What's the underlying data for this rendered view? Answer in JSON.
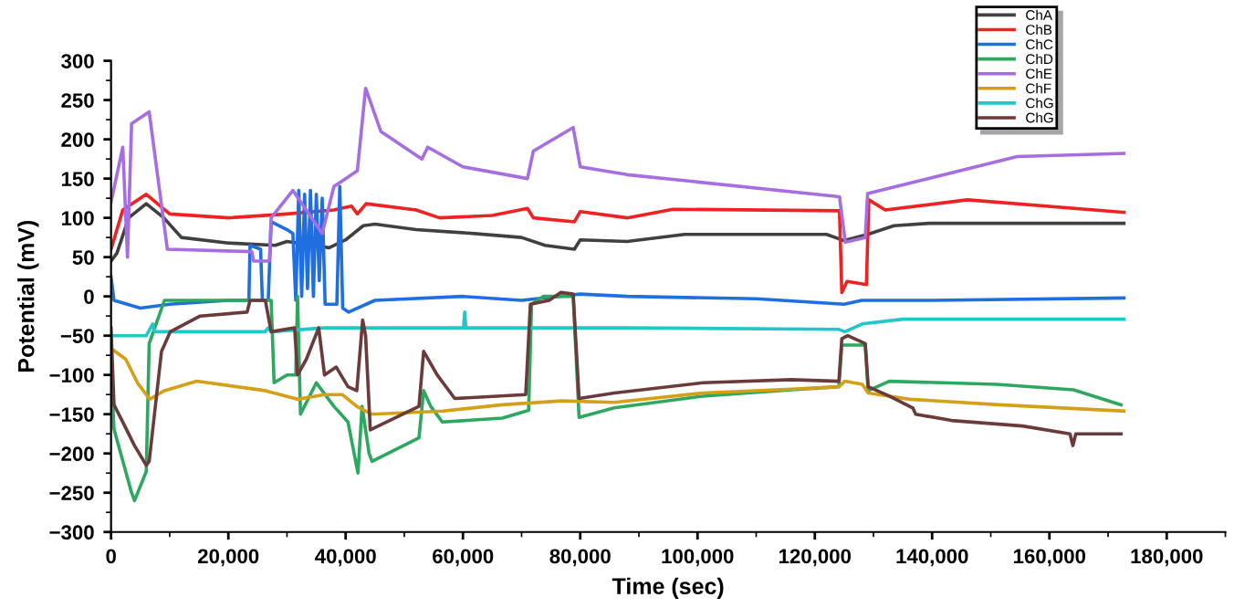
{
  "chart_data": {
    "type": "line",
    "xlabel": "Time (sec)",
    "ylabel": "Potential (mV)",
    "xlim": [
      0,
      190000
    ],
    "ylim": [
      -300,
      300
    ],
    "xticks": [
      {
        "value": 0,
        "label": "0"
      },
      {
        "value": 20000,
        "label": "20,000"
      },
      {
        "value": 40000,
        "label": "40,000"
      },
      {
        "value": 60000,
        "label": "60,000"
      },
      {
        "value": 80000,
        "label": "80,000"
      },
      {
        "value": 100000,
        "label": "100,000"
      },
      {
        "value": 120000,
        "label": "120,000"
      },
      {
        "value": 140000,
        "label": "140,000"
      },
      {
        "value": 160000,
        "label": "160,000"
      },
      {
        "value": 180000,
        "label": "180,000"
      }
    ],
    "yticks": [
      -300,
      -250,
      -200,
      -150,
      -100,
      -50,
      0,
      50,
      100,
      150,
      200,
      250,
      300
    ],
    "grid": false,
    "legend": "top right",
    "marker": "none",
    "line_style": "solid",
    "series": [
      {
        "name": "ChA",
        "color": "#404040",
        "x": [
          0,
          1000,
          3000,
          6000,
          9000,
          12000,
          20000,
          28000,
          30000,
          37200,
          40000,
          43000,
          45000,
          52000,
          62000,
          70000,
          74000,
          79000,
          80000,
          88000,
          97800,
          122000,
          125000,
          129000,
          133500,
          139500,
          172700
        ],
        "values": [
          45,
          55,
          100,
          118,
          100,
          75,
          68,
          65,
          70,
          62,
          72,
          90,
          92,
          85,
          80,
          75,
          65,
          60,
          72,
          70,
          79,
          79,
          71,
          79,
          90,
          93,
          93
        ]
      },
      {
        "name": "ChB",
        "color": "#ee2222",
        "x": [
          0,
          2000,
          6000,
          10000,
          20000,
          30000,
          38000,
          41000,
          42000,
          43500,
          52000,
          56000,
          65000,
          71000,
          72000,
          79000,
          80000,
          88000,
          95800,
          124200,
          124600,
          125500,
          128800,
          129200,
          132000,
          146000,
          172700
        ],
        "values": [
          60,
          110,
          130,
          105,
          100,
          105,
          110,
          115,
          105,
          118,
          110,
          100,
          103,
          112,
          100,
          95,
          108,
          100,
          111,
          109,
          5,
          19,
          15,
          123,
          110,
          123,
          107
        ]
      },
      {
        "name": "ChC",
        "color": "#1f6fe0",
        "x": [
          0,
          500,
          5000,
          10000,
          20000,
          23500,
          23700,
          25500,
          25800,
          26800,
          27300,
          30000,
          31000,
          31500,
          32000,
          32500,
          33000,
          33500,
          34000,
          34500,
          35000,
          35500,
          36000,
          36500,
          38500,
          39000,
          39500,
          40500,
          45000,
          60000,
          70000,
          80000,
          88000,
          110000,
          125000,
          128000,
          140000,
          172700
        ],
        "values": [
          25,
          -5,
          -15,
          -10,
          -5,
          -5,
          65,
          60,
          -5,
          -5,
          95,
          85,
          80,
          -5,
          135,
          0,
          130,
          10,
          135,
          0,
          130,
          20,
          125,
          -10,
          -10,
          140,
          -15,
          -20,
          -5,
          0,
          -5,
          3,
          0,
          -3,
          -10,
          -5,
          -5,
          -2
        ]
      },
      {
        "name": "ChD",
        "color": "#2ea860",
        "x": [
          0,
          500,
          3500,
          4000,
          6000,
          6500,
          9100,
          27300,
          27800,
          30000,
          31500,
          31800,
          32300,
          35000,
          38000,
          40400,
          42100,
          42800,
          44000,
          44500,
          52500,
          53300,
          54500,
          56500,
          66700,
          71200,
          71700,
          73700,
          78800,
          79800,
          85800,
          100900,
          116000,
          124100,
          124600,
          128600,
          129100,
          132700,
          151000,
          164100,
          172200
        ],
        "values": [
          -90,
          -169,
          -250,
          -260,
          -223,
          -60,
          -5,
          -5,
          -110,
          -100,
          -100,
          0,
          -150,
          -110,
          -140,
          -160,
          -225,
          -140,
          -200,
          -210,
          -180,
          -120,
          -140,
          -160,
          -155,
          -145,
          -10,
          0,
          0,
          -154,
          -142,
          -127,
          -119,
          -115,
          -62,
          -62,
          -120,
          -108,
          -112,
          -119,
          -138
        ]
      },
      {
        "name": "ChE",
        "color": "#a66ee0",
        "x": [
          0,
          2000,
          2800,
          3500,
          6500,
          9600,
          24000,
          24300,
          27000,
          27300,
          31000,
          36000,
          38000,
          40000,
          42000,
          43400,
          46000,
          53000,
          54000,
          60000,
          71000,
          72000,
          78800,
          80000,
          88000,
          124200,
          125200,
          128600,
          129000,
          154500,
          172700
        ],
        "values": [
          120,
          190,
          50,
          220,
          235,
          60,
          57,
          45,
          45,
          100,
          135,
          80,
          140,
          150,
          160,
          265,
          210,
          175,
          190,
          165,
          150,
          185,
          215,
          165,
          155,
          127,
          69,
          75,
          131,
          178,
          182
        ]
      },
      {
        "name": "ChF",
        "color": "#d4a017",
        "x": [
          500,
          2500,
          4500,
          6600,
          9100,
          14600,
          26300,
          31800,
          36400,
          39400,
          41900,
          44400,
          56600,
          66700,
          76800,
          85800,
          100900,
          116000,
          124100,
          125100,
          128100,
          129100,
          136200,
          151400,
          172700
        ],
        "values": [
          -69,
          -80,
          -110,
          -131,
          -120,
          -108,
          -120,
          -131,
          -125,
          -125,
          -140,
          -150,
          -146,
          -138,
          -133,
          -135,
          -123,
          -118,
          -115,
          -108,
          -112,
          -123,
          -131,
          -138,
          -146
        ]
      },
      {
        "name": "ChG",
        "color": "#22c8c8",
        "x": [
          0,
          6000,
          7100,
          7400,
          10100,
          26300,
          26800,
          27300,
          36400,
          60100,
          60300,
          60500,
          88000,
          124100,
          125100,
          128100,
          135000,
          172700
        ],
        "values": [
          -50,
          -50,
          -35,
          -45,
          -45,
          -45,
          -40,
          -45,
          -40,
          -40,
          -20,
          -40,
          -40,
          -42,
          -45,
          -35,
          -29,
          -29
        ]
      },
      {
        "name": "ChG",
        "color": "#6b3a3a",
        "x": [
          0,
          500,
          2000,
          4000,
          6000,
          6500,
          8600,
          10100,
          15200,
          23200,
          23700,
          26300,
          27300,
          31300,
          31800,
          33300,
          35400,
          36400,
          38400,
          40400,
          41900,
          42900,
          43400,
          44200,
          52500,
          53300,
          55600,
          58600,
          70700,
          71500,
          74700,
          76700,
          78800,
          79800,
          85800,
          100900,
          116000,
          124100,
          124600,
          125600,
          128600,
          129100,
          132700,
          136700,
          137200,
          143300,
          155400,
          163500,
          164000,
          164500,
          172200
        ],
        "values": [
          -40,
          -138,
          -160,
          -190,
          -215,
          -210,
          -70,
          -45,
          -25,
          -20,
          -5,
          -5,
          -45,
          -40,
          -100,
          -80,
          -40,
          -100,
          -90,
          -115,
          -120,
          -30,
          -50,
          -170,
          -140,
          -70,
          -100,
          -130,
          -125,
          -10,
          -5,
          5,
          3,
          -130,
          -123,
          -110,
          -106,
          -108,
          -54,
          -50,
          -60,
          -115,
          -127,
          -142,
          -150,
          -158,
          -165,
          -175,
          -190,
          -175,
          -175
        ]
      }
    ]
  }
}
